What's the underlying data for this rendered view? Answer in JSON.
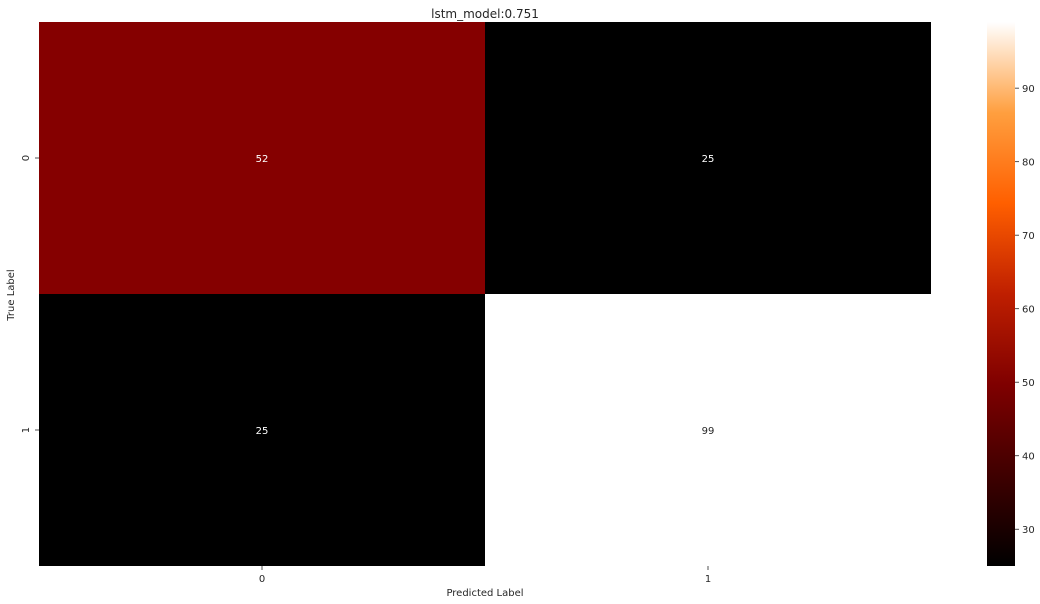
{
  "chart_data": {
    "type": "heatmap",
    "title": "lstm_model:0.751",
    "xlabel": "Predicted Label",
    "ylabel": "True Label",
    "x_categories": [
      "0",
      "1"
    ],
    "y_categories": [
      "0",
      "1"
    ],
    "values": [
      [
        52,
        25
      ],
      [
        25,
        99
      ]
    ],
    "colormap": "gist_heat",
    "colorbar": {
      "range": [
        25,
        99
      ],
      "ticks": [
        30,
        40,
        50,
        60,
        70,
        80,
        90
      ]
    },
    "grid": false
  }
}
